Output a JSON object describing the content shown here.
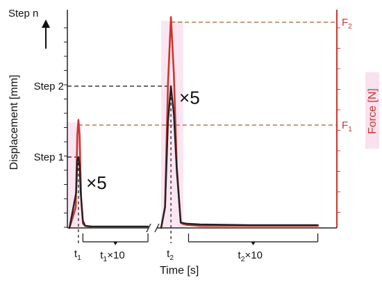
{
  "chart_data": {
    "type": "line",
    "title": "",
    "xlabel": "Time [s]",
    "ylabel_left": "Displacement [mm]",
    "ylabel_right": "Force [N]",
    "x_break": true,
    "grid": false,
    "x_ticks": [
      {
        "label": "t",
        "sub": "1",
        "x": 0.4
      },
      {
        "label": "t",
        "sub": "2",
        "x": 5.0
      }
    ],
    "x_span_labels": [
      {
        "label": "t",
        "sub": "1",
        "suffix": "×10",
        "from": 0.6,
        "to": 3.5
      },
      {
        "label": "t",
        "sub": "2",
        "suffix": "×10",
        "from": 5.9,
        "to": 12.5
      }
    ],
    "left_ticks": [
      {
        "label": "Step 1",
        "value": 1
      },
      {
        "label": "Step 2",
        "value": 2
      }
    ],
    "left_axis_top_label": "Step n",
    "right_ticks": [
      {
        "label": "F",
        "sub": "1",
        "value": 1
      },
      {
        "label": "F",
        "sub": "2",
        "value": 2
      }
    ],
    "annotations": [
      {
        "text": "×5",
        "x": 0.9,
        "y": 0.5
      },
      {
        "text": "×5",
        "x": 5.6,
        "y": 1.7
      }
    ],
    "series": [
      {
        "role": "force",
        "color": "#d0342c",
        "x": [
          0,
          0.28,
          0.35,
          0.4,
          0.45,
          0.52,
          0.6,
          0.7,
          1.0,
          2.0,
          3.5
        ],
        "y": [
          0,
          0.2,
          0.9,
          1.05,
          0.9,
          0.3,
          0.04,
          0.02,
          0.01,
          0.01,
          0.01
        ]
      },
      {
        "role": "displacement",
        "color": "#222222",
        "x": [
          0,
          0.3,
          0.35,
          0.4,
          0.45,
          0.5,
          0.6,
          0.7,
          1.0,
          2.0,
          3.5
        ],
        "y": [
          0,
          0.5,
          0.95,
          1.0,
          0.9,
          0.5,
          0.1,
          0.03,
          0.02,
          0.02,
          0.02
        ]
      },
      {
        "role": "force",
        "color": "#d0342c",
        "x": [
          4.5,
          4.7,
          4.85,
          5.0,
          5.15,
          5.3,
          5.5,
          5.6,
          5.8,
          6.5,
          9.0,
          12.5
        ],
        "y": [
          0,
          0.2,
          1.4,
          2.05,
          1.5,
          0.6,
          0.05,
          0.04,
          0.03,
          0.02,
          0.02,
          0.02
        ]
      },
      {
        "role": "displacement",
        "color": "#222222",
        "x": [
          4.5,
          4.7,
          4.85,
          5.0,
          5.15,
          5.3,
          5.5,
          5.6,
          5.8,
          6.5,
          9.0,
          12.5
        ],
        "y": [
          0,
          0.3,
          1.5,
          2.0,
          1.6,
          0.8,
          0.08,
          0.07,
          0.06,
          0.05,
          0.04,
          0.04
        ]
      }
    ],
    "guides": [
      {
        "axis": "left",
        "value": 1,
        "to_x": 0.4
      },
      {
        "axis": "left",
        "value": 2,
        "to_x": 5.0
      },
      {
        "axis": "right",
        "value": 1,
        "from_x": 0.4
      },
      {
        "axis": "right",
        "value": 2,
        "from_x": 5.0
      }
    ]
  }
}
